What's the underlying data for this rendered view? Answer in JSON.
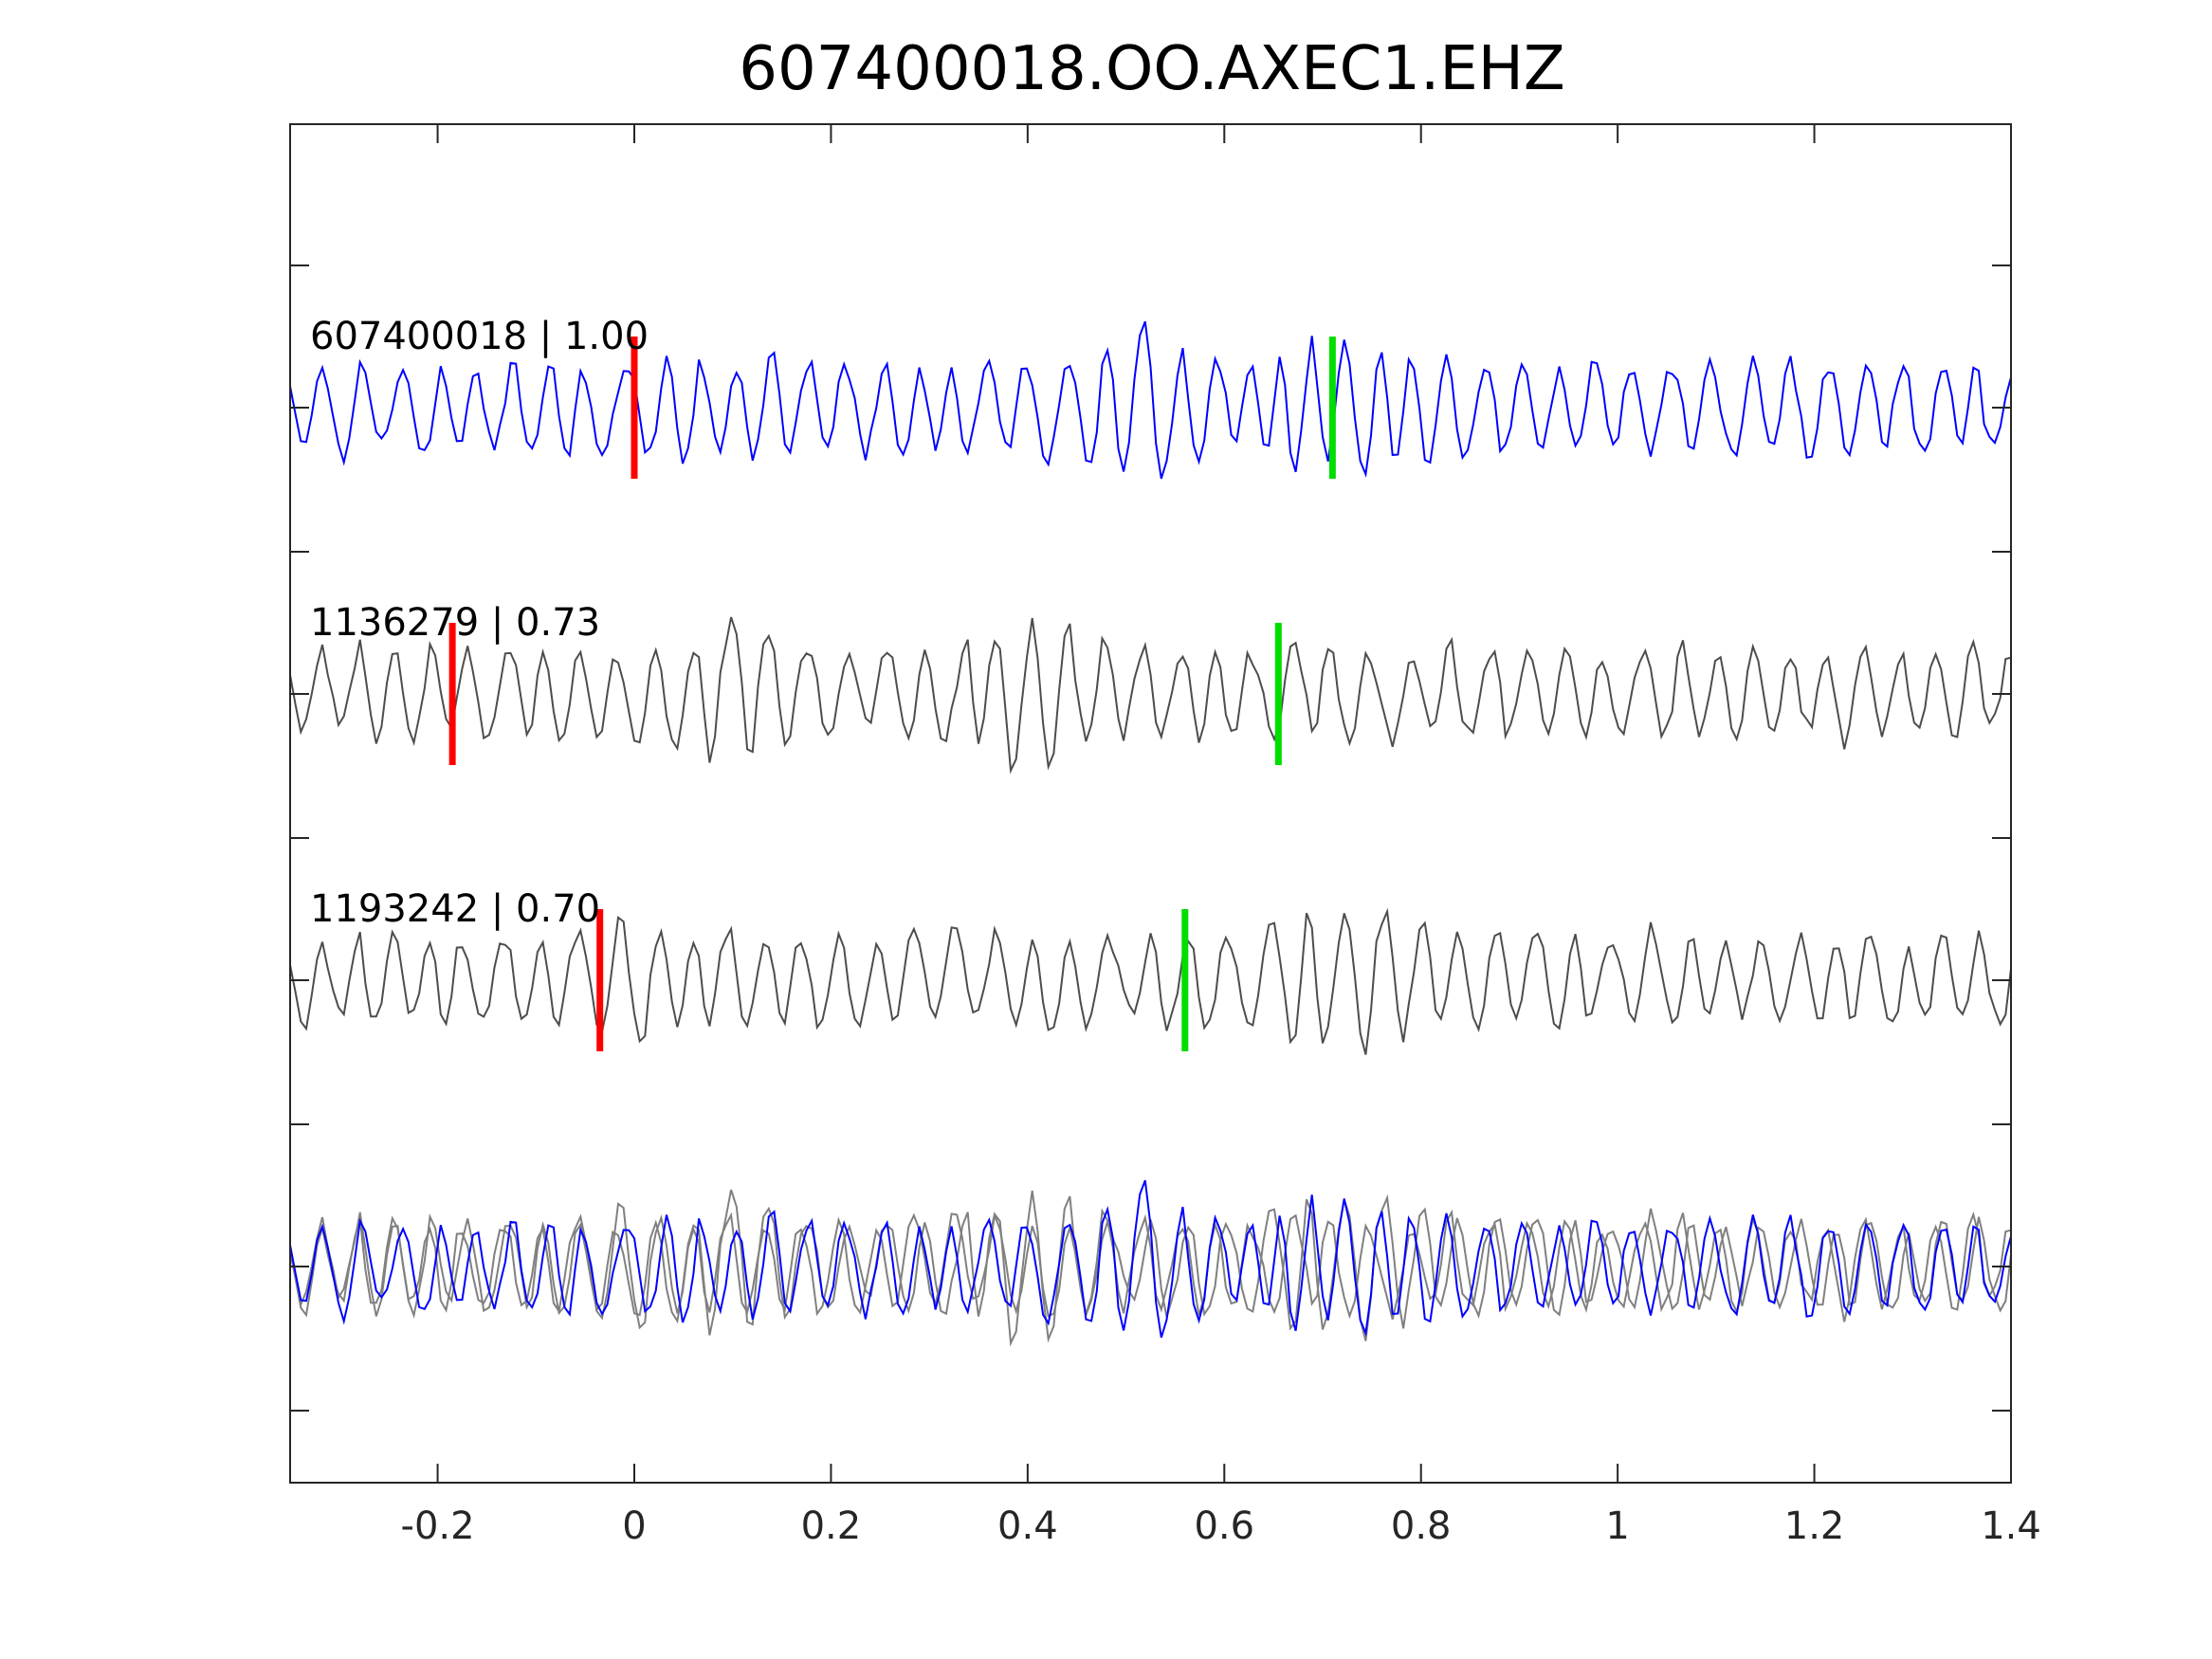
{
  "chart_data": {
    "type": "line",
    "title": "607400018.OO.AXEC1.EHZ",
    "xlabel": "",
    "ylabel": "",
    "xlim": [
      -0.35,
      1.4
    ],
    "x_ticks": [
      {
        "value": -0.2,
        "label": "-0.2"
      },
      {
        "value": 0,
        "label": "0"
      },
      {
        "value": 0.2,
        "label": "0.2"
      },
      {
        "value": 0.4,
        "label": "0.4"
      },
      {
        "value": 0.6,
        "label": "0.6"
      },
      {
        "value": 0.8,
        "label": "0.8"
      },
      {
        "value": 1,
        "label": "1"
      },
      {
        "value": 1.2,
        "label": "1.2"
      },
      {
        "value": 1.4,
        "label": "1.4"
      }
    ],
    "grid": false,
    "colors": {
      "reference": "#0000ff",
      "neighbor": "#4d4d4d",
      "overlay_neighbor": "#808080",
      "p_pick": "#ff0000",
      "s_pick": "#00dd00",
      "axis": "#262626"
    },
    "series": [
      {
        "name": "607400018 | 1.00",
        "p_pick": 0.0,
        "s_pick": 0.71
      },
      {
        "name": "1136279 | 0.73",
        "p_pick": -0.185,
        "s_pick": 0.655
      },
      {
        "name": "1193242 | 0.70",
        "p_pick": -0.035,
        "s_pick": 0.56
      }
    ]
  }
}
